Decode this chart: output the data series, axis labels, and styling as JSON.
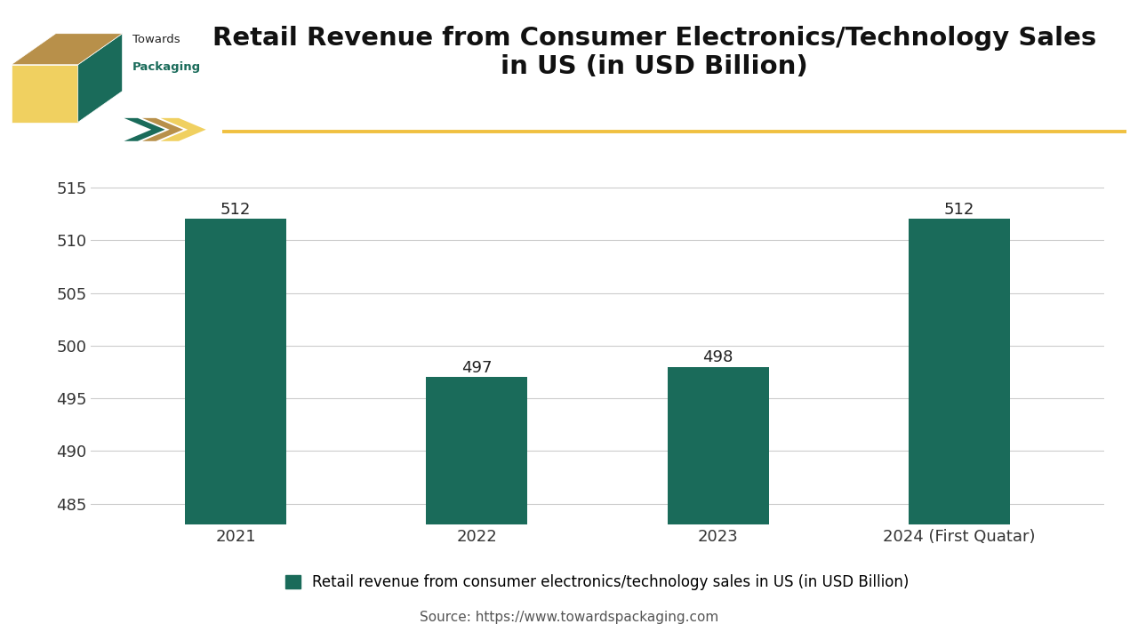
{
  "title": "Retail Revenue from Consumer Electronics/Technology Sales\nin US (in USD Billion)",
  "categories": [
    "2021",
    "2022",
    "2023",
    "2024 (First Quatar)"
  ],
  "values": [
    512,
    497,
    498,
    512
  ],
  "bar_color": "#1a6b5a",
  "ylim": [
    483,
    517
  ],
  "yticks": [
    485,
    490,
    495,
    500,
    505,
    510,
    515
  ],
  "legend_label": "Retail revenue from consumer electronics/technology sales in US (in USD Billion)",
  "source_text": "Source: https://www.towardspackaging.com",
  "background_color": "#ffffff",
  "title_fontsize": 21,
  "tick_fontsize": 13,
  "bar_label_fontsize": 13,
  "legend_fontsize": 12,
  "source_fontsize": 11,
  "accent_line_color": "#f0c040",
  "grid_color": "#cccccc"
}
